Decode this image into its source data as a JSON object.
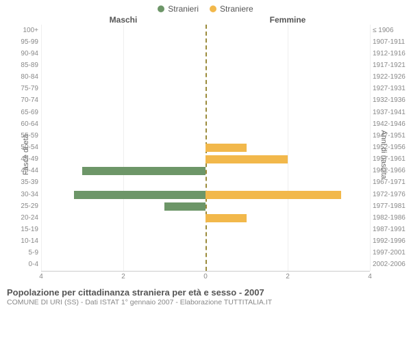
{
  "legend": {
    "male": {
      "label": "Stranieri",
      "color": "#6d9668"
    },
    "female": {
      "label": "Straniere",
      "color": "#f2b84b"
    }
  },
  "headers": {
    "male": "Maschi",
    "female": "Femmine"
  },
  "axis_titles": {
    "left": "Fasce di età",
    "right": "Anni di nascita"
  },
  "xlim": 4,
  "xticks_left": [
    4,
    2,
    0
  ],
  "xticks_right": [
    0,
    2,
    4
  ],
  "grid_color": "#eeeeee",
  "center_line_color": "#9a8a3a",
  "rows": [
    {
      "age": "100+",
      "birth": "≤ 1906",
      "m": 0,
      "f": 0
    },
    {
      "age": "95-99",
      "birth": "1907-1911",
      "m": 0,
      "f": 0
    },
    {
      "age": "90-94",
      "birth": "1912-1916",
      "m": 0,
      "f": 0
    },
    {
      "age": "85-89",
      "birth": "1917-1921",
      "m": 0,
      "f": 0
    },
    {
      "age": "80-84",
      "birth": "1922-1926",
      "m": 0,
      "f": 0
    },
    {
      "age": "75-79",
      "birth": "1927-1931",
      "m": 0,
      "f": 0
    },
    {
      "age": "70-74",
      "birth": "1932-1936",
      "m": 0,
      "f": 0
    },
    {
      "age": "65-69",
      "birth": "1937-1941",
      "m": 0,
      "f": 0
    },
    {
      "age": "60-64",
      "birth": "1942-1946",
      "m": 0,
      "f": 0
    },
    {
      "age": "55-59",
      "birth": "1947-1951",
      "m": 0,
      "f": 0
    },
    {
      "age": "50-54",
      "birth": "1952-1956",
      "m": 0,
      "f": 1
    },
    {
      "age": "45-49",
      "birth": "1957-1961",
      "m": 0,
      "f": 2
    },
    {
      "age": "40-44",
      "birth": "1962-1966",
      "m": 3,
      "f": 0
    },
    {
      "age": "35-39",
      "birth": "1967-1971",
      "m": 0,
      "f": 0
    },
    {
      "age": "30-34",
      "birth": "1972-1976",
      "m": 3.2,
      "f": 3.3
    },
    {
      "age": "25-29",
      "birth": "1977-1981",
      "m": 1,
      "f": 0
    },
    {
      "age": "20-24",
      "birth": "1982-1986",
      "m": 0,
      "f": 1
    },
    {
      "age": "15-19",
      "birth": "1987-1991",
      "m": 0,
      "f": 0
    },
    {
      "age": "10-14",
      "birth": "1992-1996",
      "m": 0,
      "f": 0
    },
    {
      "age": "5-9",
      "birth": "1997-2001",
      "m": 0,
      "f": 0
    },
    {
      "age": "0-4",
      "birth": "2002-2006",
      "m": 0,
      "f": 0
    }
  ],
  "caption": {
    "title": "Popolazione per cittadinanza straniera per età e sesso - 2007",
    "subtitle": "COMUNE DI URI (SS) - Dati ISTAT 1° gennaio 2007 - Elaborazione TUTTITALIA.IT"
  }
}
